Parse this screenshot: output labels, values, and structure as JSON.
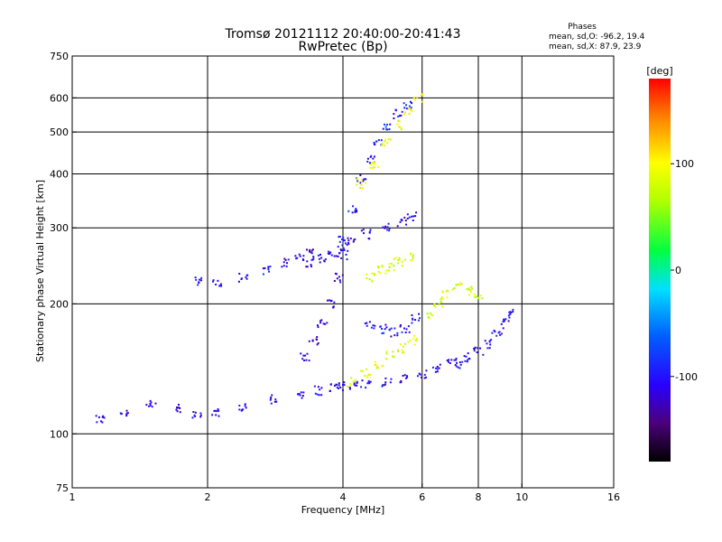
{
  "chart_data": {
    "type": "scatter",
    "title": "Tromsø 20121112 20:40:00-20:41:43",
    "subtitle": "RwPretec (Bp)",
    "xlabel": "Frequency [MHz]",
    "ylabel": "Stationary phase Virtual Height [km]",
    "xscale": "log",
    "yscale": "log",
    "xlim": [
      1,
      16
    ],
    "ylim": [
      75,
      750
    ],
    "xticks": [
      1,
      2,
      4,
      6,
      8,
      10,
      16
    ],
    "xtick_labels": [
      "1",
      "2",
      "4",
      "6",
      "8",
      "10",
      "16"
    ],
    "xgrid": [
      2,
      4,
      6,
      8,
      10
    ],
    "yticks": [
      75,
      100,
      200,
      300,
      400,
      500,
      600,
      750
    ],
    "ytick_labels": [
      "75",
      "100",
      "200",
      "300",
      "400",
      "500",
      "600",
      "750"
    ],
    "ygrid": [
      100,
      200,
      300,
      400,
      500,
      600
    ],
    "grid": true,
    "legend": {
      "title": "Phases",
      "lines": [
        "mean, sd,O: -96.2, 19.4",
        "mean, sd,X:  87.9, 23.9"
      ],
      "placement": "top-right"
    },
    "colorbar": {
      "label": "[deg]",
      "range": [
        -180,
        180
      ],
      "ticks": [
        100,
        0,
        -100
      ],
      "tick_labels": [
        "100",
        "0",
        "-100"
      ],
      "colormap": "rainbow"
    },
    "series": [
      {
        "mode": "O",
        "traces": [
          {
            "f": [
              1.15,
              1.3,
              1.5,
              1.7,
              1.9,
              2.1,
              2.4,
              2.8,
              3.2,
              3.5,
              3.8,
              4.0,
              4.2,
              4.5,
              5.0,
              5.5,
              6.0,
              6.5,
              7.0
            ],
            "h": [
              108,
              112,
              118,
              114,
              110,
              112,
              116,
              120,
              124,
              126,
              128,
              129,
              130,
              131,
              132,
              134,
              138,
              142,
              146
            ],
            "phase": -110
          },
          {
            "f": [
              3.3,
              3.45,
              3.6,
              3.75,
              3.9,
              4.0
            ],
            "h": [
              150,
              165,
              180,
              200,
              230,
              260
            ],
            "phase": -115
          },
          {
            "f": [
              1.9,
              2.1,
              2.4,
              2.7,
              3.0,
              3.2,
              3.4
            ],
            "h": [
              225,
              225,
              230,
              240,
              250,
              258,
              262
            ],
            "phase": -105
          },
          {
            "f": [
              3.4,
              3.6,
              3.8,
              4.0,
              4.2,
              4.5,
              5.0,
              5.4,
              5.7
            ],
            "h": [
              250,
              255,
              262,
              270,
              280,
              290,
              300,
              310,
              320
            ],
            "phase": -110
          },
          {
            "f": [
              4.0,
              4.2,
              4.4,
              4.6,
              4.8,
              5.0,
              5.3,
              5.6
            ],
            "h": [
              280,
              330,
              390,
              430,
              470,
              510,
              550,
              580
            ],
            "phase": -95
          },
          {
            "f": [
              4.6,
              4.9,
              5.2,
              5.5,
              5.8
            ],
            "h": [
              180,
              175,
              172,
              176,
              185
            ],
            "phase": -100
          },
          {
            "f": [
              7.2,
              7.6,
              8.0,
              8.4,
              8.8,
              9.2,
              9.4
            ],
            "h": [
              145,
              150,
              155,
              162,
              170,
              180,
              190
            ],
            "phase": -105
          }
        ]
      },
      {
        "mode": "X",
        "traces": [
          {
            "f": [
              4.2,
              4.5,
              4.8,
              5.1,
              5.4,
              5.7
            ],
            "h": [
              132,
              138,
              145,
              152,
              158,
              165
            ],
            "phase": 90
          },
          {
            "f": [
              4.6,
              4.9,
              5.1,
              5.3,
              5.6
            ],
            "h": [
              230,
              240,
              245,
              250,
              258
            ],
            "phase": 85
          },
          {
            "f": [
              4.4,
              4.7,
              5.0,
              5.3,
              5.6,
              5.9
            ],
            "h": [
              380,
              420,
              470,
              520,
              560,
              600
            ],
            "phase": 95
          },
          {
            "f": [
              6.2,
              6.5,
              6.8,
              7.2,
              7.6,
              8.0
            ],
            "h": [
              190,
              200,
              210,
              220,
              215,
              210
            ],
            "phase": 80
          }
        ]
      }
    ]
  }
}
